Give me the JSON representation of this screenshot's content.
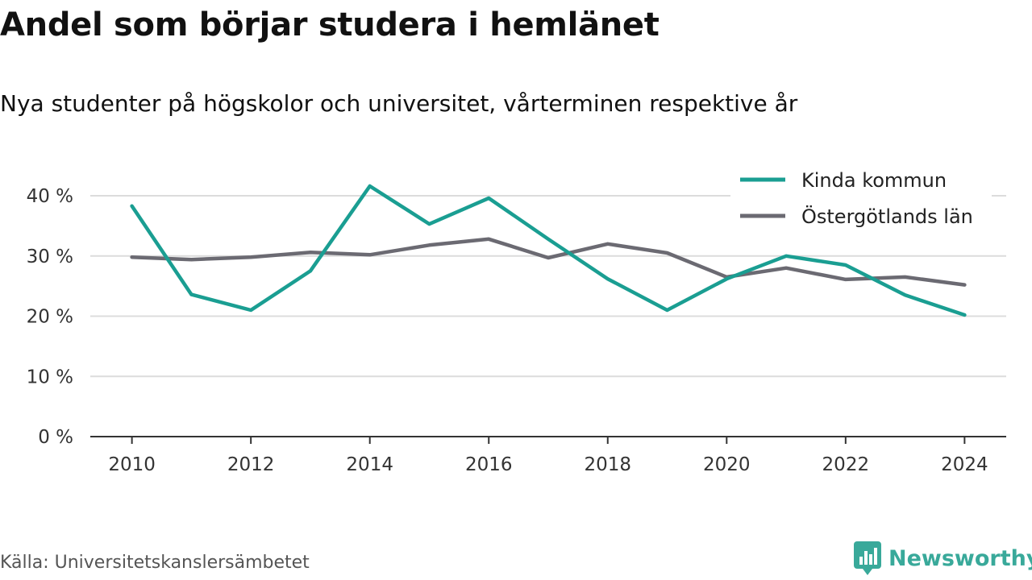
{
  "title": "Andel som börjar studera i hemlänet",
  "subtitle": "Nya studenter på högskolor och universitet, vårterminen respektive år",
  "source": "Källa: Universitetskanslersämbetet",
  "brand": {
    "name": "Newsworthy",
    "icon": "newsworthy-logo-icon",
    "color": "#39a99a"
  },
  "chart_data": {
    "type": "line",
    "x": [
      2010,
      2011,
      2012,
      2013,
      2014,
      2015,
      2016,
      2017,
      2018,
      2019,
      2020,
      2021,
      2022,
      2023,
      2024
    ],
    "series": [
      {
        "name": "Kinda kommun",
        "color": "#1a9e92",
        "values": [
          38.3,
          23.6,
          21.0,
          27.5,
          41.6,
          35.3,
          39.6,
          32.8,
          26.2,
          21.0,
          26.2,
          30.0,
          28.5,
          23.5,
          20.2
        ]
      },
      {
        "name": "Östergötlands län",
        "color": "#6b6a72",
        "values": [
          29.8,
          29.4,
          29.8,
          30.6,
          30.2,
          31.8,
          32.8,
          29.7,
          32.0,
          30.5,
          26.5,
          28.0,
          26.1,
          26.5,
          25.2
        ]
      }
    ],
    "yticks": [
      0,
      10,
      20,
      30,
      40
    ],
    "ytick_labels": [
      "0 %",
      "10 %",
      "20 %",
      "30 %",
      "40 %"
    ],
    "xticks": [
      2010,
      2012,
      2014,
      2016,
      2018,
      2020,
      2022,
      2024
    ],
    "xtick_labels": [
      "2010",
      "2012",
      "2014",
      "2016",
      "2018",
      "2020",
      "2022",
      "2024"
    ],
    "ylim": [
      0,
      40
    ],
    "xlim": [
      2009.3,
      2024.7
    ],
    "grid": true,
    "legend_position": "top-right"
  }
}
